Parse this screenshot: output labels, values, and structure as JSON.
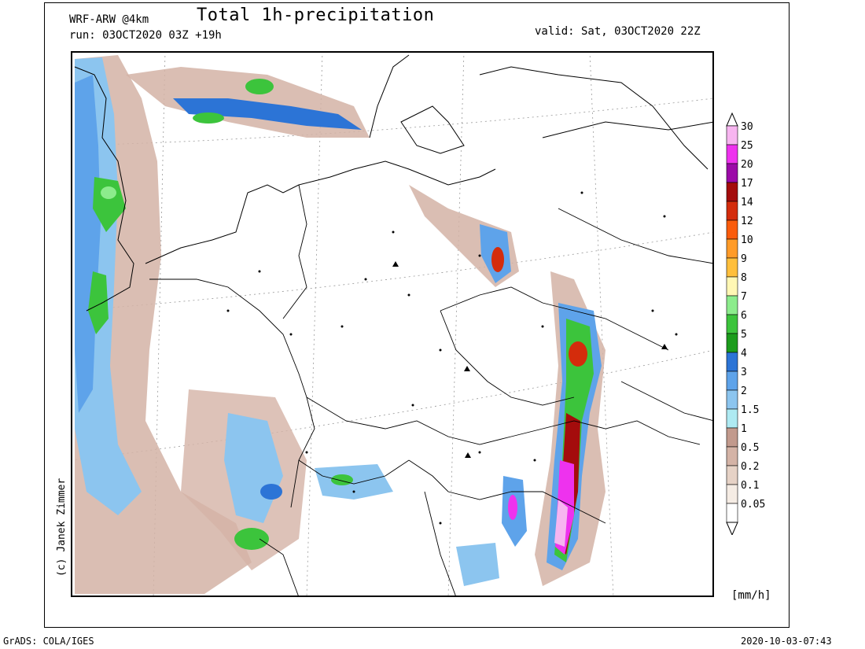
{
  "header": {
    "model": "WRF-ARW @4km",
    "title": "Total 1h-precipitation",
    "run": "run: 03OCT2020 03Z +19h",
    "valid": "valid: Sat, 03OCT2020 22Z"
  },
  "legend": {
    "units": "[mm/h]",
    "levels": [
      {
        "label": "0.05",
        "color": "#ffffff"
      },
      {
        "label": "0.1",
        "color": "#f5ece4"
      },
      {
        "label": "0.2",
        "color": "#e6d2c6"
      },
      {
        "label": "0.5",
        "color": "#d4b3a6"
      },
      {
        "label": "1",
        "color": "#c29a8d"
      },
      {
        "label": "1.5",
        "color": "#aeeaf2"
      },
      {
        "label": "2",
        "color": "#8cc5ef"
      },
      {
        "label": "3",
        "color": "#5ea3ea"
      },
      {
        "label": "4",
        "color": "#2c74d6"
      },
      {
        "label": "5",
        "color": "#1c9c1c"
      },
      {
        "label": "6",
        "color": "#3cc43c"
      },
      {
        "label": "7",
        "color": "#8cec8c"
      },
      {
        "label": "8",
        "color": "#fff7b4"
      },
      {
        "label": "9",
        "color": "#ffbf3c"
      },
      {
        "label": "10",
        "color": "#ff9b28"
      },
      {
        "label": "12",
        "color": "#fa5c0c"
      },
      {
        "label": "14",
        "color": "#d42c0c"
      },
      {
        "label": "17",
        "color": "#a40c0c"
      },
      {
        "label": "20",
        "color": "#9c0aa8"
      },
      {
        "label": "25",
        "color": "#ee32ee"
      },
      {
        "label": "30",
        "color": "#f7b5f0"
      }
    ]
  },
  "credit": "(c) Janek Zimmer",
  "footer": {
    "left": "GrADS: COLA/IGES",
    "right": "2020-10-03-07:43"
  }
}
